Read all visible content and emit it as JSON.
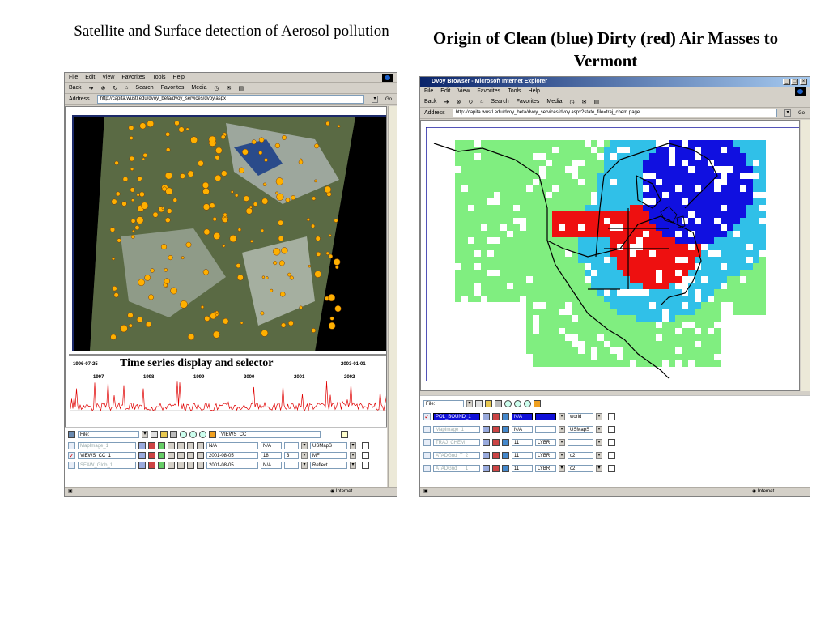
{
  "slide": {
    "left_title": "Satellite and Surface detection of Aerosol pollution",
    "right_title": "Origin of Clean (blue)  Dirty (red) Air Masses to Vermont",
    "timeseries_caption": "Time series display and selector"
  },
  "left_window": {
    "menu": [
      "File",
      "Edit",
      "View",
      "Favorites",
      "Tools",
      "Help"
    ],
    "toolbar": [
      "Back",
      "Search",
      "Favorites",
      "Media"
    ],
    "address_label": "Address",
    "address": "http://capita.wustl.edu/dvoy_beta/dvoy_services/dvoy.aspx",
    "go_label": "Go",
    "timeseries": {
      "start_label": "1996-07-25",
      "end_label": "2003-01-01",
      "years": [
        "1997",
        "1998",
        "1999",
        "2000",
        "2001",
        "2002"
      ]
    },
    "panel": {
      "file_label": "File:",
      "views_value": "VIEWS_CC",
      "rows": [
        {
          "name": "MapImage_1",
          "date": "N/A",
          "a": "N/A",
          "b": "",
          "c": "USMapS",
          "checked": false
        },
        {
          "name": "VIEWS_CC_1",
          "date": "2001-08-05",
          "a": "18",
          "b": "3",
          "c": "MF",
          "checked": true
        },
        {
          "name": "SEAW_Glob_1",
          "date": "2001-08-05",
          "a": "N/A",
          "b": "",
          "c": "Reflect",
          "checked": false
        }
      ]
    },
    "status": "Internet"
  },
  "right_window": {
    "title": "DVoy Browser - Microsoft Internet Explorer",
    "menu": [
      "File",
      "Edit",
      "View",
      "Favorites",
      "Tools",
      "Help"
    ],
    "toolbar": [
      "Back",
      "Search",
      "Favorites",
      "Media"
    ],
    "address_label": "Address",
    "address": "http://capita.wustl.edu/dvoy_beta/dvoy_services/dvoy.aspx?state_file=traj_chem.page",
    "go_label": "Go",
    "panel": {
      "file_label": "File:",
      "rows": [
        {
          "name": "POL_BOUND_1",
          "a": "N/A",
          "b": "",
          "c": "world",
          "checked": true
        },
        {
          "name": "MapImage_1",
          "a": "N/A",
          "b": "",
          "c": "USMapS",
          "checked": false
        },
        {
          "name": "TRAJ_CHEM",
          "a": "11",
          "b": "LYBR",
          "c": "",
          "checked": false
        },
        {
          "name": "ATADGnd_T_2",
          "a": "11",
          "b": "LYBR",
          "c": "c2",
          "checked": false
        },
        {
          "name": "ATADGnd_T_1",
          "a": "11",
          "b": "LYBR",
          "c": "c2",
          "checked": false
        }
      ]
    },
    "status": "Internet"
  },
  "colors": {
    "clean": "#1010e0",
    "dirty": "#ee1010",
    "mid_cyan": "#30c0e8",
    "low_green": "#80ee80",
    "timeseries_line": "#e00000",
    "aerosol_dot": "#ffb000"
  }
}
